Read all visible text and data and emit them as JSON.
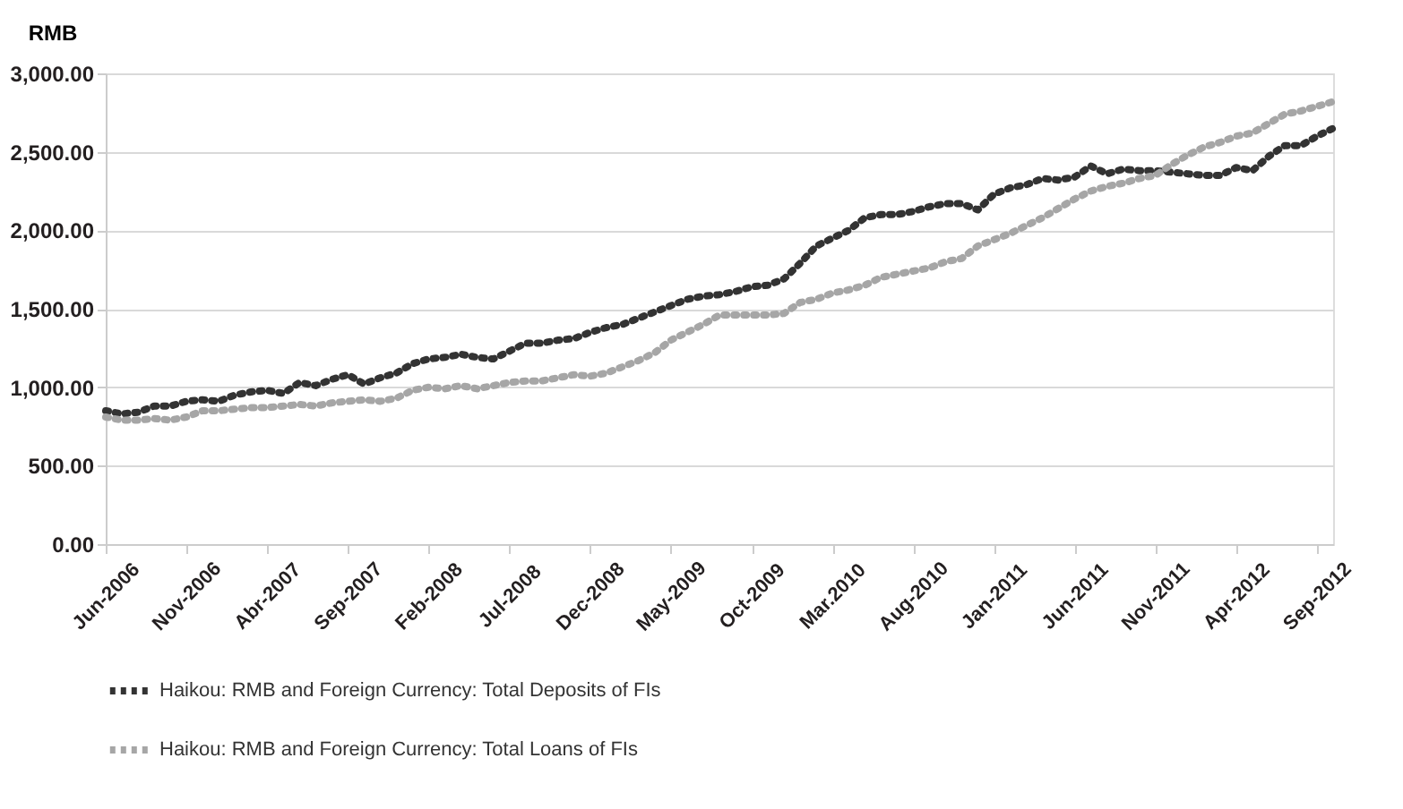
{
  "chart_data": {
    "type": "line",
    "ylabel": "RMB",
    "categories": [
      "Jun-2006",
      null,
      null,
      null,
      null,
      "Nov-2006",
      null,
      null,
      null,
      null,
      "Abr-2007",
      null,
      null,
      null,
      null,
      "Sep-2007",
      null,
      null,
      null,
      null,
      "Feb-2008",
      null,
      null,
      null,
      null,
      "Jul-2008",
      null,
      null,
      null,
      null,
      "Dec-2008",
      null,
      null,
      null,
      null,
      "May-2009",
      null,
      null,
      null,
      null,
      "Oct-2009",
      null,
      null,
      null,
      null,
      "Mar.2010",
      null,
      null,
      null,
      null,
      "Aug-2010",
      null,
      null,
      null,
      null,
      "Jan-2011",
      null,
      null,
      null,
      null,
      "Jun-2011",
      null,
      null,
      null,
      null,
      "Nov-2011",
      null,
      null,
      null,
      null,
      "Apr-2012",
      null,
      null,
      null,
      null,
      "Sep-2012",
      null
    ],
    "series": [
      {
        "name": "Haikou: RMB and Foreign Currency: Total Deposits of FIs",
        "color": "#333333",
        "values": [
          850,
          830,
          840,
          880,
          880,
          910,
          920,
          910,
          950,
          970,
          980,
          960,
          1030,
          1010,
          1050,
          1080,
          1020,
          1060,
          1090,
          1150,
          1180,
          1190,
          1210,
          1190,
          1180,
          1230,
          1280,
          1280,
          1300,
          1310,
          1350,
          1380,
          1400,
          1440,
          1480,
          1520,
          1560,
          1580,
          1590,
          1610,
          1640,
          1650,
          1690,
          1790,
          1900,
          1950,
          2000,
          2080,
          2100,
          2100,
          2120,
          2150,
          2170,
          2170,
          2130,
          2230,
          2270,
          2290,
          2330,
          2320,
          2340,
          2410,
          2360,
          2390,
          2380,
          2380,
          2370,
          2360,
          2350,
          2350,
          2400,
          2380,
          2470,
          2540,
          2540,
          2600,
          2650
        ]
      },
      {
        "name": "Haikou: RMB and Foreign Currency: Total Loans of FIs",
        "color": "#a6a6a6",
        "values": [
          810,
          790,
          790,
          800,
          790,
          810,
          850,
          850,
          860,
          870,
          870,
          880,
          890,
          880,
          900,
          910,
          920,
          910,
          930,
          980,
          1000,
          990,
          1010,
          990,
          1010,
          1030,
          1040,
          1040,
          1060,
          1080,
          1070,
          1090,
          1130,
          1170,
          1220,
          1300,
          1350,
          1400,
          1460,
          1460,
          1460,
          1460,
          1470,
          1540,
          1560,
          1600,
          1620,
          1650,
          1700,
          1720,
          1740,
          1760,
          1800,
          1820,
          1900,
          1940,
          1980,
          2030,
          2080,
          2140,
          2200,
          2250,
          2280,
          2300,
          2330,
          2350,
          2420,
          2480,
          2530,
          2560,
          2600,
          2620,
          2680,
          2740,
          2760,
          2790,
          2820
        ]
      }
    ],
    "ylim": [
      0,
      3000
    ],
    "yticks": [
      {
        "value": 0,
        "label": "0.00"
      },
      {
        "value": 500,
        "label": "500.00"
      },
      {
        "value": 1000,
        "label": "1,000.00"
      },
      {
        "value": 1500,
        "label": "1,500.00"
      },
      {
        "value": 2000,
        "label": "2,000.00"
      },
      {
        "value": 2500,
        "label": "2,500.00"
      },
      {
        "value": 3000,
        "label": "3,000.00"
      }
    ],
    "grid": "y",
    "legend": "bottom left",
    "line_style": "dotted",
    "marker": "none"
  }
}
